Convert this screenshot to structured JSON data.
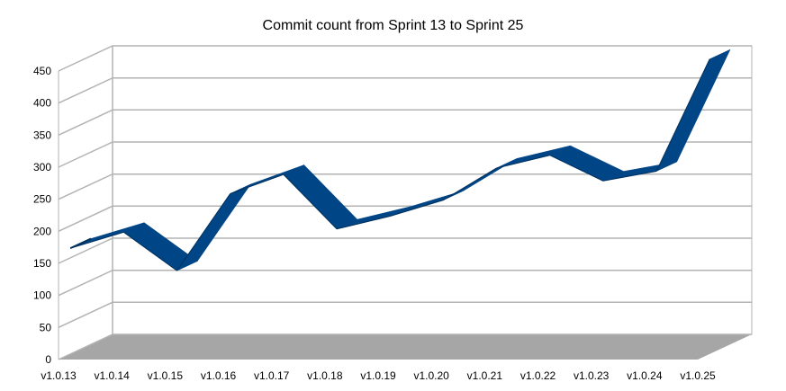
{
  "chart_data": {
    "type": "area",
    "title": "Commit count from Sprint 13 to Sprint 25",
    "xlabel": "",
    "ylabel": "",
    "view": "3d",
    "categories": [
      "v1.0.13",
      "v1.0.14",
      "v1.0.15",
      "v1.0.16",
      "v1.0.17",
      "v1.0.18",
      "v1.0.19",
      "v1.0.20",
      "v1.0.21",
      "v1.0.22",
      "v1.0.23",
      "v1.0.24",
      "v1.0.25"
    ],
    "values": [
      165,
      190,
      130,
      250,
      280,
      195,
      215,
      240,
      290,
      310,
      270,
      285,
      460
    ],
    "ylim": [
      0,
      450
    ],
    "yticks": [
      0,
      50,
      100,
      150,
      200,
      250,
      300,
      350,
      400,
      450
    ],
    "grid": true,
    "legend": "none",
    "colors": {
      "series": "#004586",
      "series_dark": "#00305c",
      "floor": "#a6a6a6",
      "wall": "#ffffff",
      "grid": "#b3b3b3"
    }
  }
}
